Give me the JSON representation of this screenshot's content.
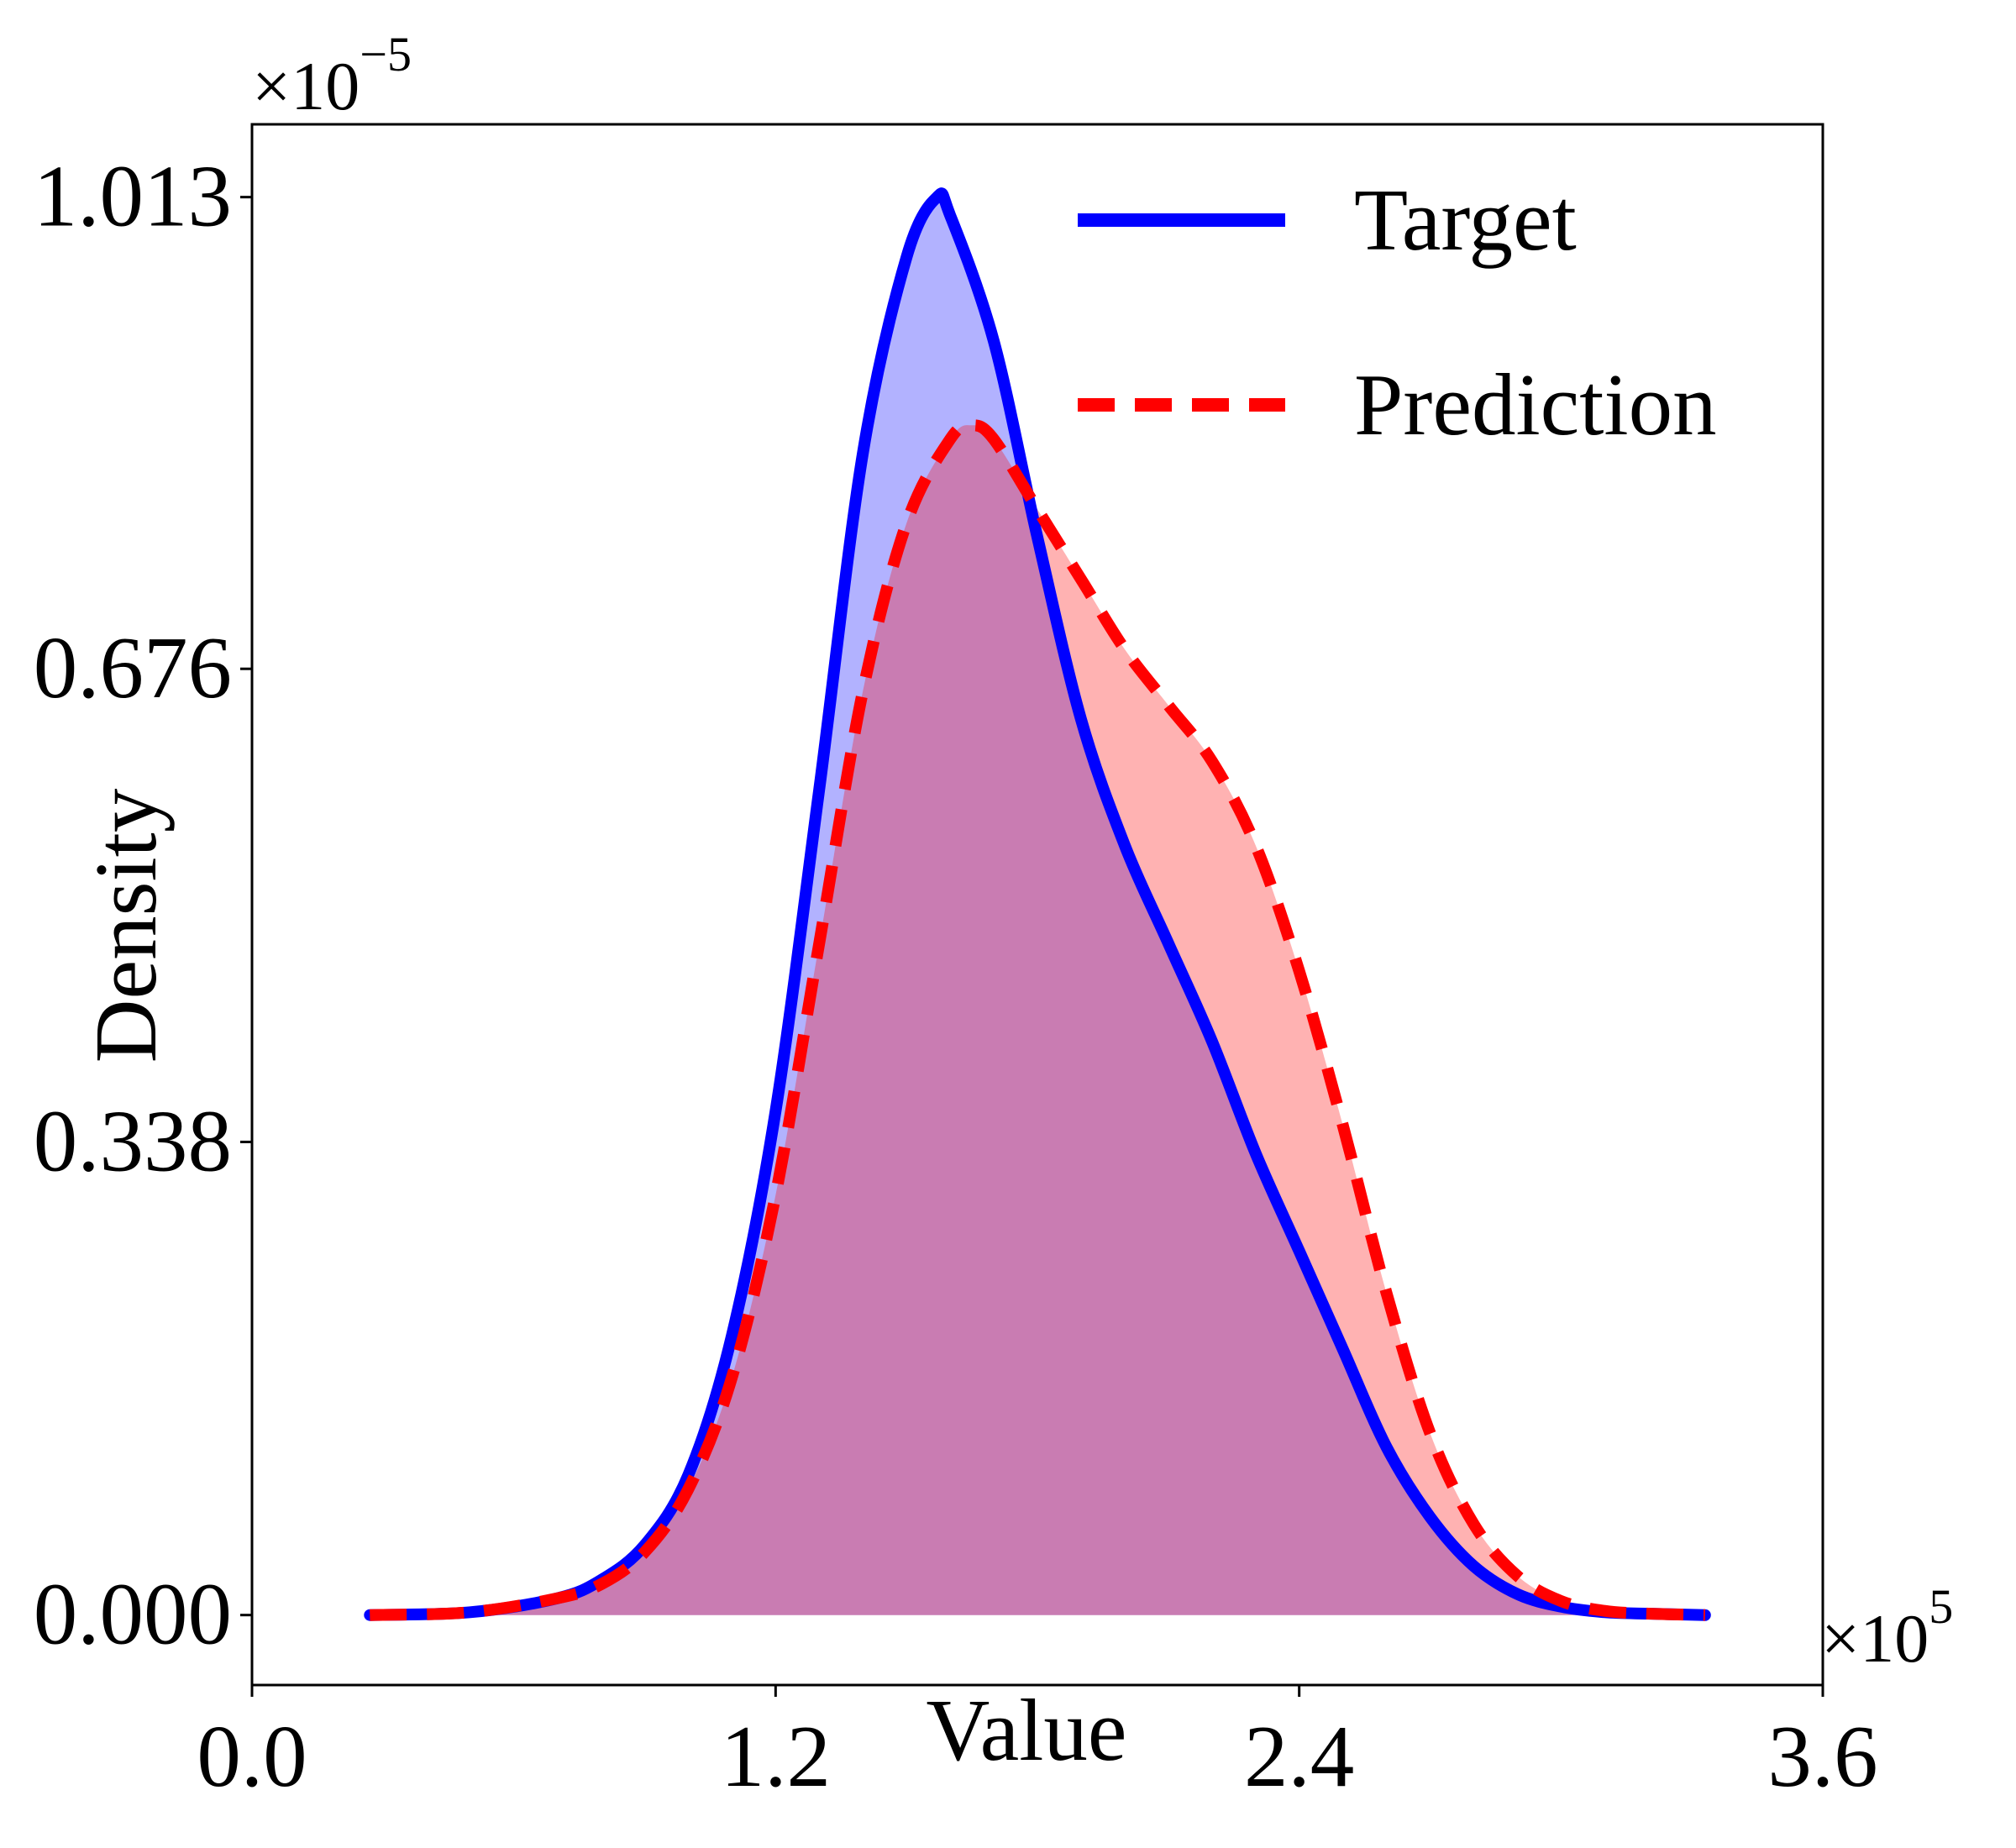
{
  "chart_data": {
    "type": "area",
    "title": "",
    "xlabel": "Value",
    "ylabel": "Density",
    "x_multiplier": "×10",
    "x_multiplier_exp": "5",
    "y_multiplier": "×10",
    "y_multiplier_exp": "−5",
    "xlim": [
      0.0,
      3.6
    ],
    "ylim": [
      -0.05,
      1.065
    ],
    "x_ticks": [
      0.0,
      1.2,
      2.4,
      3.6
    ],
    "x_tick_labels": [
      "0.0",
      "1.2",
      "2.4",
      "3.6"
    ],
    "y_ticks": [
      0.0,
      0.338,
      0.676,
      1.013
    ],
    "y_tick_labels": [
      "0.000",
      "0.338",
      "0.676",
      "1.013"
    ],
    "legend_position": "top-right",
    "series": [
      {
        "name": "Target",
        "color": "#0000ff",
        "fill": "#0000ff",
        "fill_opacity": 0.3,
        "line_style": "solid",
        "x": [
          0.27,
          0.5,
          0.7,
          0.8,
          0.9,
          1.0,
          1.1,
          1.2,
          1.3,
          1.4,
          1.5,
          1.57,
          1.6,
          1.7,
          1.8,
          1.9,
          2.0,
          2.1,
          2.2,
          2.3,
          2.4,
          2.5,
          2.6,
          2.7,
          2.8,
          2.9,
          3.0,
          3.1,
          3.2,
          3.33
        ],
        "y": [
          0.0,
          0.002,
          0.012,
          0.025,
          0.05,
          0.1,
          0.2,
          0.36,
          0.59,
          0.83,
          0.97,
          1.013,
          1.0,
          0.91,
          0.77,
          0.64,
          0.55,
          0.48,
          0.41,
          0.33,
          0.26,
          0.19,
          0.12,
          0.07,
          0.035,
          0.015,
          0.006,
          0.002,
          0.001,
          0.0
        ]
      },
      {
        "name": "Prediction",
        "color": "#ff0000",
        "fill": "#ff0000",
        "fill_opacity": 0.3,
        "line_style": "dashed",
        "x": [
          0.27,
          0.5,
          0.7,
          0.8,
          0.9,
          1.0,
          1.1,
          1.2,
          1.3,
          1.4,
          1.5,
          1.6,
          1.65,
          1.7,
          1.8,
          1.9,
          2.0,
          2.1,
          2.2,
          2.3,
          2.4,
          2.5,
          2.6,
          2.7,
          2.8,
          2.9,
          3.0,
          3.1,
          3.2,
          3.33
        ],
        "y": [
          0.0,
          0.002,
          0.012,
          0.022,
          0.045,
          0.09,
          0.17,
          0.3,
          0.48,
          0.66,
          0.78,
          0.84,
          0.85,
          0.84,
          0.79,
          0.74,
          0.69,
          0.65,
          0.61,
          0.55,
          0.46,
          0.35,
          0.23,
          0.13,
          0.065,
          0.028,
          0.01,
          0.003,
          0.001,
          0.0
        ]
      }
    ]
  }
}
